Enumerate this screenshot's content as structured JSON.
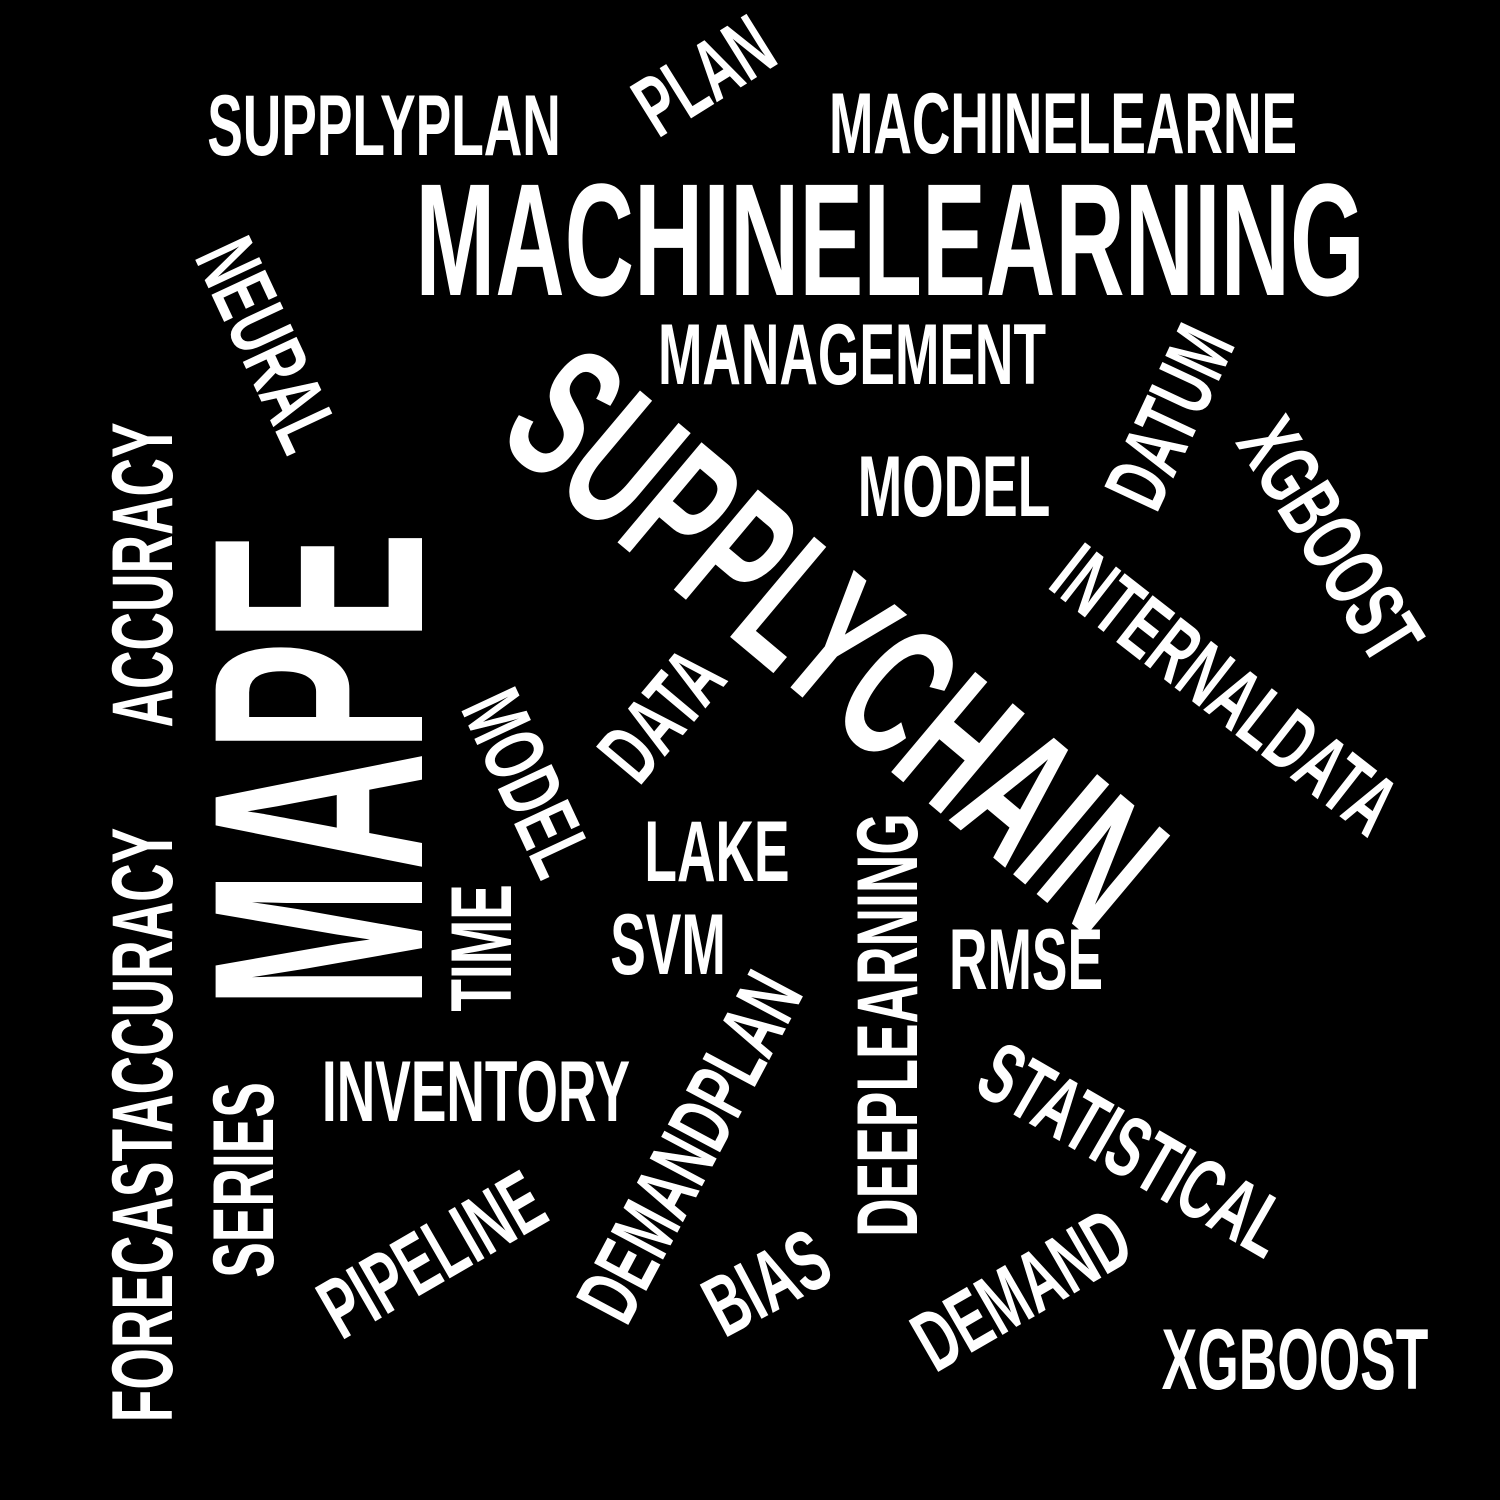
{
  "background_color": "#000000",
  "text_color": "#ffffff",
  "words": {
    "supplyplan": "SUPPLYPLAN",
    "plan": "PLAN",
    "machinelearne": "MACHINELEARNE",
    "machinelearning": "MACHINELEARNING",
    "management": "MANAGEMENT",
    "neural": "NEURAL",
    "supplychain": "SUPPLYCHAIN",
    "model_top": "MODEL",
    "datum": "DATUM",
    "xgboost_right": "XGBOOST",
    "internaldata": "INTERNALDATA",
    "accuracy": "ACCURACY",
    "mape": "MAPE",
    "data_mid": "DATA",
    "model_mid": "MODEL",
    "lake": "LAKE",
    "svm": "SVM",
    "time": "TIME",
    "forecastaccuracy": "FORECASTACCURACY",
    "deeplearning": "DEEPLEARNING",
    "rmse": "RMSE",
    "inventory": "INVENTORY",
    "series": "SERIES",
    "demandplan": "DEMANDPLAN",
    "statistical": "STATISTICAL",
    "pipeline": "PIPELINE",
    "bias": "BIAS",
    "demand": "DEMAND",
    "xgboost_bottom": "XGBOOST"
  }
}
